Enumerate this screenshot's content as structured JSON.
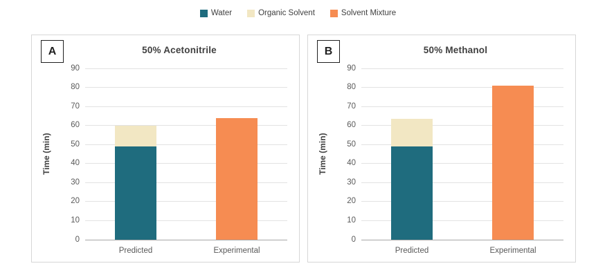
{
  "legend": {
    "items": [
      {
        "label": "Water",
        "color": "#1f6c7e"
      },
      {
        "label": "Organic Solvent",
        "color": "#f2e7c3"
      },
      {
        "label": "Solvent Mixture",
        "color": "#f68c52"
      }
    ]
  },
  "chart_data": [
    {
      "type": "bar",
      "panel_label": "A",
      "title": "50% Acetonitrile",
      "xlabel": "",
      "ylabel": "Time (min)",
      "ylim": [
        0,
        90
      ],
      "ytick_step": 10,
      "grid": true,
      "stacked": true,
      "legend_position": "top-shared",
      "categories": [
        "Predicted",
        "Experimental"
      ],
      "series": [
        {
          "name": "Water",
          "color": "#1f6c7e",
          "values": [
            49,
            0
          ]
        },
        {
          "name": "Organic Solvent",
          "color": "#f2e7c3",
          "values": [
            11,
            0
          ]
        },
        {
          "name": "Solvent Mixture",
          "color": "#f68c52",
          "values": [
            0,
            64
          ]
        }
      ]
    },
    {
      "type": "bar",
      "panel_label": "B",
      "title": "50% Methanol",
      "xlabel": "",
      "ylabel": "Time (min)",
      "ylim": [
        0,
        90
      ],
      "ytick_step": 10,
      "grid": true,
      "stacked": true,
      "legend_position": "top-shared",
      "categories": [
        "Predicted",
        "Experimental"
      ],
      "series": [
        {
          "name": "Water",
          "color": "#1f6c7e",
          "values": [
            49,
            0
          ]
        },
        {
          "name": "Organic Solvent",
          "color": "#f2e7c3",
          "values": [
            14.5,
            0
          ]
        },
        {
          "name": "Solvent Mixture",
          "color": "#f68c52",
          "values": [
            0,
            81
          ]
        }
      ]
    }
  ]
}
